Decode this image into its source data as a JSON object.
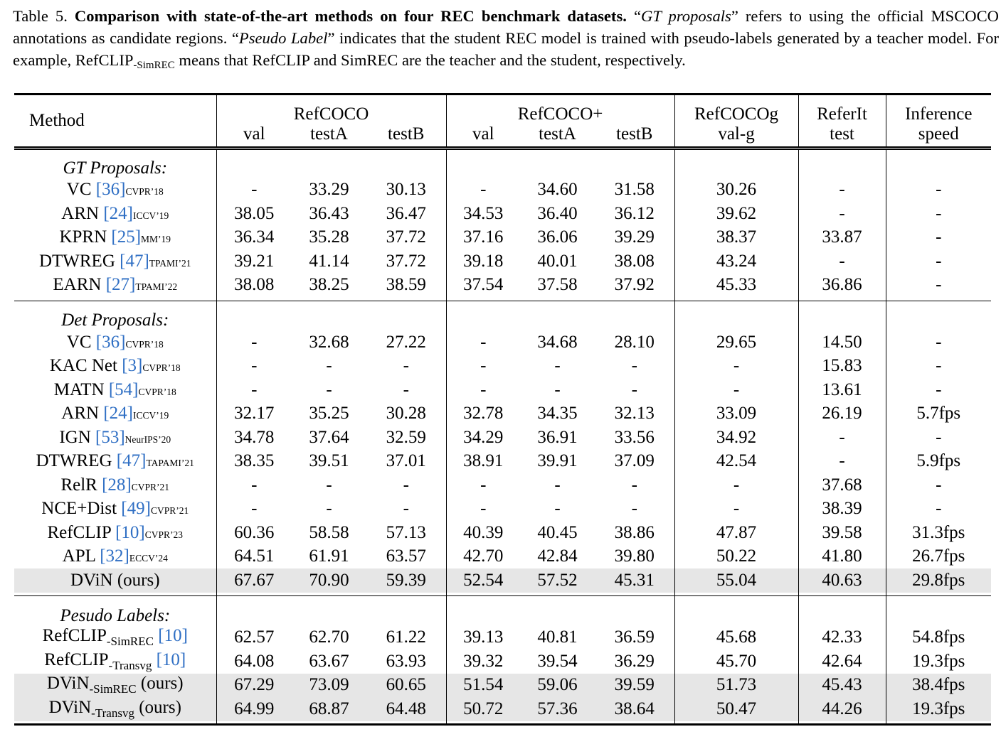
{
  "caption": {
    "label": "Table 5.",
    "title": "Comparison with state-of-the-art methods on four REC benchmark datasets.",
    "segments": [
      "“",
      "GT proposals",
      "” refers to using the official MSCOCO annotations as candidate regions. “",
      "Pseudo Label",
      "” indicates that the student REC model is trained with pseudo-labels generated by a teacher model. For example, RefCLIP",
      "-SimREC",
      " means that RefCLIP and SimREC are the teacher and the student, respectively."
    ]
  },
  "table": {
    "method_header": "Method",
    "groups": [
      {
        "label": "RefCOCO",
        "cols": [
          "val",
          "testA",
          "testB"
        ]
      },
      {
        "label": "RefCOCO+",
        "cols": [
          "val",
          "testA",
          "testB"
        ]
      },
      {
        "label": "RefCOCOg",
        "cols": [
          "val-g"
        ]
      },
      {
        "label": "ReferIt",
        "cols": [
          "test"
        ]
      },
      {
        "label": "Inference",
        "cols": [
          "speed"
        ]
      }
    ],
    "sections": [
      {
        "title": "GT Proposals:",
        "rows": [
          {
            "name": "VC",
            "ref": "[36]",
            "venue": "CVPR’18",
            "values": [
              "-",
              "33.29",
              "30.13",
              "-",
              "34.60",
              "31.58",
              "30.26",
              "-",
              "-"
            ]
          },
          {
            "name": "ARN",
            "ref": "[24]",
            "venue": "ICCV’19",
            "values": [
              "38.05",
              "36.43",
              "36.47",
              "34.53",
              "36.40",
              "36.12",
              "39.62",
              "-",
              "-"
            ]
          },
          {
            "name": "KPRN",
            "ref": "[25]",
            "venue": "MM’19",
            "values": [
              "36.34",
              "35.28",
              "37.72",
              "37.16",
              "36.06",
              "39.29",
              "38.37",
              "33.87",
              "-"
            ]
          },
          {
            "name": "DTWREG",
            "ref": "[47]",
            "venue": "TPAMI’21",
            "values": [
              "39.21",
              "41.14",
              "37.72",
              "39.18",
              "40.01",
              "38.08",
              "43.24",
              "-",
              "-"
            ]
          },
          {
            "name": "EARN",
            "ref": "[27]",
            "venue": "TPAMI’22",
            "values": [
              "38.08",
              "38.25",
              "38.59",
              "37.54",
              "37.58",
              "37.92",
              "45.33",
              "36.86",
              "-"
            ]
          }
        ]
      },
      {
        "title": "Det Proposals:",
        "rows": [
          {
            "name": "VC",
            "ref": "[36]",
            "venue": "CVPR’18",
            "values": [
              "-",
              "32.68",
              "27.22",
              "-",
              "34.68",
              "28.10",
              "29.65",
              "14.50",
              "-"
            ]
          },
          {
            "name": "KAC Net",
            "ref": "[3]",
            "venue": "CVPR’18",
            "values": [
              "-",
              "-",
              "-",
              "-",
              "-",
              "-",
              "-",
              "15.83",
              "-"
            ]
          },
          {
            "name": "MATN",
            "ref": "[54]",
            "venue": "CVPR’18",
            "values": [
              "-",
              "-",
              "-",
              "-",
              "-",
              "-",
              "-",
              "13.61",
              "-"
            ]
          },
          {
            "name": "ARN",
            "ref": "[24]",
            "venue": "ICCV’19",
            "values": [
              "32.17",
              "35.25",
              "30.28",
              "32.78",
              "34.35",
              "32.13",
              "33.09",
              "26.19",
              "5.7fps"
            ]
          },
          {
            "name": "IGN",
            "ref": "[53]",
            "venue": "NeurIPS’20",
            "values": [
              "34.78",
              "37.64",
              "32.59",
              "34.29",
              "36.91",
              "33.56",
              "34.92",
              "-",
              "-"
            ]
          },
          {
            "name": "DTWREG",
            "ref": "[47]",
            "venue": "TAPAMI’21",
            "values": [
              "38.35",
              "39.51",
              "37.01",
              "38.91",
              "39.91",
              "37.09",
              "42.54",
              "-",
              "5.9fps"
            ]
          },
          {
            "name": "RelR",
            "ref": "[28]",
            "venue": "CVPR’21",
            "values": [
              "-",
              "-",
              "-",
              "-",
              "-",
              "-",
              "-",
              "37.68",
              "-"
            ]
          },
          {
            "name": "NCE+Dist",
            "ref": "[49]",
            "venue": "CVPR’21",
            "values": [
              "-",
              "-",
              "-",
              "-",
              "-",
              "-",
              "-",
              "38.39",
              "-"
            ]
          },
          {
            "name": "RefCLIP",
            "ref": "[10]",
            "venue": "CVPR’23",
            "values": [
              "60.36",
              "58.58",
              "57.13",
              "40.39",
              "40.45",
              "38.86",
              "47.87",
              "39.58",
              "31.3fps"
            ]
          },
          {
            "name": "APL",
            "ref": "[32]",
            "venue": "ECCV’24",
            "values": [
              "64.51",
              "61.91",
              "63.57",
              "42.70",
              "42.84",
              "39.80",
              "50.22",
              "41.80",
              "26.7fps"
            ],
            "bold": [
              7
            ]
          },
          {
            "name": "DViN (ours)",
            "values": [
              "67.67",
              "70.90",
              "59.39",
              "52.54",
              "57.52",
              "45.31",
              "55.04",
              "40.63",
              "29.8fps"
            ],
            "bold": [
              0,
              1,
              2,
              3,
              4,
              5,
              6
            ],
            "highlight": true
          }
        ]
      },
      {
        "title": "Pesudo Labels:",
        "rows": [
          {
            "name": "RefCLIP",
            "sub": "-SimREC",
            "ref": "[10]",
            "values": [
              "62.57",
              "62.70",
              "61.22",
              "39.13",
              "40.81",
              "36.59",
              "45.68",
              "42.33",
              "54.8fps"
            ]
          },
          {
            "name": "RefCLIP",
            "sub": "-Transvg",
            "ref": "[10]",
            "values": [
              "64.08",
              "63.67",
              "63.93",
              "39.32",
              "39.54",
              "36.29",
              "45.70",
              "42.64",
              "19.3fps"
            ]
          },
          {
            "name": "DViN",
            "sub": "-SimREC",
            "suffix": "(ours)",
            "values": [
              "67.29",
              "73.09",
              "60.65",
              "51.54",
              "59.06",
              "39.59",
              "51.73",
              "45.43",
              "38.4fps"
            ],
            "bold": [
              0,
              1,
              3,
              4,
              5,
              6,
              7
            ],
            "highlight": true
          },
          {
            "name": "DViN",
            "sub": "-Transvg",
            "suffix": "(ours)",
            "values": [
              "64.99",
              "68.87",
              "64.48",
              "50.72",
              "57.36",
              "38.64",
              "50.47",
              "44.26",
              "19.3fps"
            ],
            "bold": [
              2
            ],
            "highlight": true
          }
        ]
      }
    ]
  }
}
